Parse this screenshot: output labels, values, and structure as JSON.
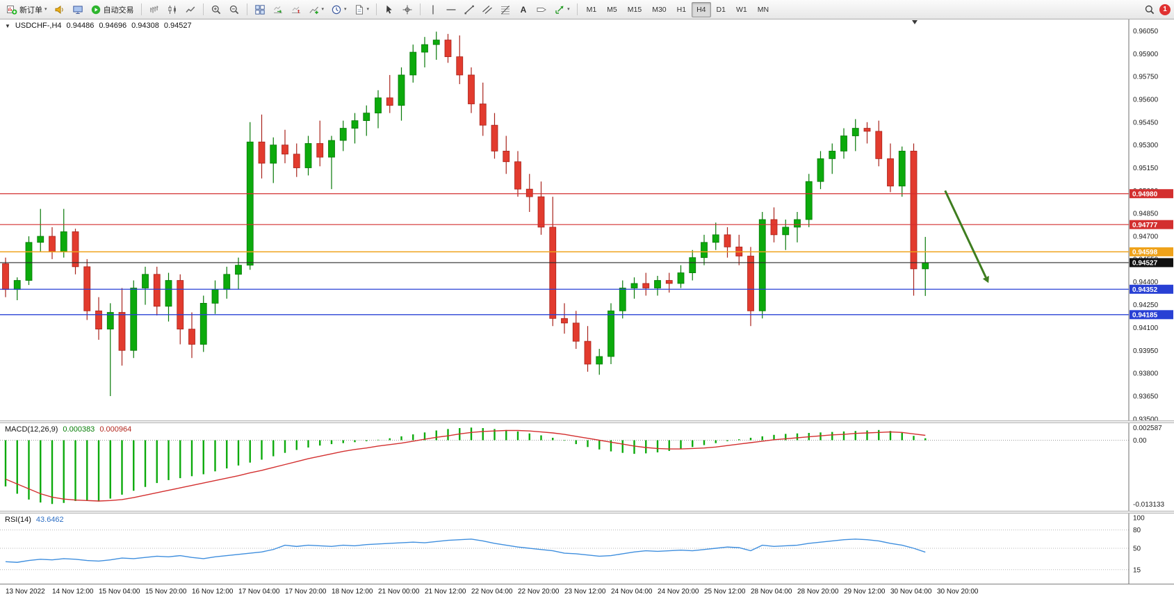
{
  "toolbar": {
    "new_order_label": "新订单",
    "auto_trading_label": "自动交易",
    "timeframes": [
      "M1",
      "M5",
      "M15",
      "M30",
      "H1",
      "H4",
      "D1",
      "W1",
      "MN"
    ],
    "active_timeframe": "H4",
    "notification_badge": "1",
    "icons": [
      "new-order-icon",
      "speaker-icon",
      "monitor-icon",
      "auto-trading-icon",
      "bar-chart-icon",
      "candlestick-chart-icon",
      "line-chart-icon",
      "zoom-in-icon",
      "zoom-out-icon",
      "tile-windows-icon",
      "auto-scroll-icon",
      "chart-shift-icon",
      "indicators-icon",
      "periods-icon",
      "templates-icon",
      "cursor-icon",
      "crosshair-icon",
      "vertical-line-icon",
      "horizontal-line-icon",
      "trendline-icon",
      "channel-icon",
      "fibonacci-icon",
      "text-icon",
      "label-icon",
      "arrows-icon",
      "search-icon"
    ]
  },
  "chart_header": {
    "symbol_period": "USDCHF-,H4",
    "open": "0.94486",
    "high": "0.94696",
    "low": "0.94308",
    "close": "0.94527"
  },
  "macd_panel": {
    "label": "MACD(12,26,9)",
    "value_main": "0.000383",
    "value_signal": "0.000964"
  },
  "rsi_panel": {
    "label": "RSI(14)",
    "value": "43.6462"
  },
  "time_axis": {
    "labels": [
      "13 Nov 2022",
      "14 Nov 12:00",
      "15 Nov 04:00",
      "15 Nov 20:00",
      "16 Nov 12:00",
      "17 Nov 04:00",
      "17 Nov 20:00",
      "18 Nov 12:00",
      "21 Nov 00:00",
      "21 Nov 12:00",
      "22 Nov 04:00",
      "22 Nov 20:00",
      "23 Nov 12:00",
      "24 Nov 04:00",
      "24 Nov 20:00",
      "25 Nov 12:00",
      "28 Nov 04:00",
      "28 Nov 20:00",
      "29 Nov 12:00",
      "30 Nov 04:00",
      "30 Nov 20:00"
    ]
  },
  "chart_data": [
    {
      "type": "candlestick",
      "title": "USDCHF- H4",
      "ylim": [
        0.9349,
        0.96125
      ],
      "y_ticks": [
        "0.93500",
        "0.93650",
        "0.93800",
        "0.93950",
        "0.94100",
        "0.94250",
        "0.94400",
        "0.94550",
        "0.94700",
        "0.94850",
        "0.95000",
        "0.95150",
        "0.95300",
        "0.95450",
        "0.95600",
        "0.95750",
        "0.95900",
        "0.96050"
      ],
      "colors": {
        "up": "#0caa0c",
        "down": "#e23b2e",
        "up_border": "#067806",
        "down_border": "#a8221a"
      },
      "candles": [
        [
          0.9452,
          0.9456,
          0.943,
          0.9435
        ],
        [
          0.9435,
          0.9443,
          0.9428,
          0.9441
        ],
        [
          0.9441,
          0.947,
          0.9438,
          0.9466
        ],
        [
          0.9466,
          0.9488,
          0.946,
          0.947
        ],
        [
          0.947,
          0.9476,
          0.9455,
          0.946
        ],
        [
          0.946,
          0.9488,
          0.9456,
          0.9473
        ],
        [
          0.9473,
          0.9475,
          0.9445,
          0.945
        ],
        [
          0.945,
          0.9455,
          0.9415,
          0.9421
        ],
        [
          0.9421,
          0.943,
          0.9402,
          0.9409
        ],
        [
          0.9409,
          0.9426,
          0.9365,
          0.942
        ],
        [
          0.942,
          0.9436,
          0.9385,
          0.9395
        ],
        [
          0.9395,
          0.9441,
          0.939,
          0.9436
        ],
        [
          0.9436,
          0.945,
          0.9425,
          0.9445
        ],
        [
          0.9445,
          0.945,
          0.9418,
          0.9424
        ],
        [
          0.9424,
          0.9446,
          0.9414,
          0.9441
        ],
        [
          0.9441,
          0.9445,
          0.9399,
          0.9409
        ],
        [
          0.9409,
          0.942,
          0.939,
          0.9399
        ],
        [
          0.9399,
          0.9431,
          0.9394,
          0.9426
        ],
        [
          0.9426,
          0.9441,
          0.9419,
          0.9435
        ],
        [
          0.9435,
          0.945,
          0.9429,
          0.9445
        ],
        [
          0.9445,
          0.9456,
          0.9435,
          0.9451
        ],
        [
          0.9451,
          0.9545,
          0.9448,
          0.9532
        ],
        [
          0.9532,
          0.955,
          0.9508,
          0.9518
        ],
        [
          0.9518,
          0.9535,
          0.9505,
          0.953
        ],
        [
          0.953,
          0.954,
          0.9518,
          0.9524
        ],
        [
          0.9524,
          0.9531,
          0.9509,
          0.9515
        ],
        [
          0.9515,
          0.9536,
          0.951,
          0.9531
        ],
        [
          0.9531,
          0.9546,
          0.9516,
          0.9522
        ],
        [
          0.9522,
          0.9536,
          0.9501,
          0.9533
        ],
        [
          0.9533,
          0.9546,
          0.9526,
          0.9541
        ],
        [
          0.9541,
          0.9551,
          0.9531,
          0.9546
        ],
        [
          0.9546,
          0.9556,
          0.9536,
          0.9551
        ],
        [
          0.9551,
          0.9566,
          0.9541,
          0.9561
        ],
        [
          0.9561,
          0.9576,
          0.9551,
          0.9556
        ],
        [
          0.9556,
          0.9581,
          0.9546,
          0.9576
        ],
        [
          0.9576,
          0.9596,
          0.9571,
          0.9591
        ],
        [
          0.9591,
          0.9601,
          0.9581,
          0.9596
        ],
        [
          0.9596,
          0.96045,
          0.9586,
          0.9599
        ],
        [
          0.9599,
          0.9603,
          0.9584,
          0.9588
        ],
        [
          0.9588,
          0.9602,
          0.957,
          0.9576
        ],
        [
          0.9576,
          0.9581,
          0.9551,
          0.9557
        ],
        [
          0.9557,
          0.9571,
          0.9536,
          0.9543
        ],
        [
          0.9543,
          0.9551,
          0.9521,
          0.9526
        ],
        [
          0.9526,
          0.9536,
          0.9511,
          0.9519
        ],
        [
          0.9519,
          0.9526,
          0.9496,
          0.9501
        ],
        [
          0.9501,
          0.9511,
          0.9486,
          0.9496
        ],
        [
          0.9496,
          0.9506,
          0.9471,
          0.9476
        ],
        [
          0.9476,
          0.9496,
          0.9411,
          0.9416
        ],
        [
          0.9416,
          0.9426,
          0.9406,
          0.9413
        ],
        [
          0.9413,
          0.9421,
          0.9396,
          0.9401
        ],
        [
          0.9401,
          0.9411,
          0.9381,
          0.9386
        ],
        [
          0.9386,
          0.9396,
          0.9379,
          0.9391
        ],
        [
          0.9391,
          0.9426,
          0.9386,
          0.9421
        ],
        [
          0.9421,
          0.9441,
          0.9416,
          0.9436
        ],
        [
          0.9436,
          0.9443,
          0.9429,
          0.9439
        ],
        [
          0.9439,
          0.9446,
          0.9431,
          0.9436
        ],
        [
          0.9436,
          0.9444,
          0.9431,
          0.9441
        ],
        [
          0.9441,
          0.9446,
          0.9433,
          0.9439
        ],
        [
          0.9439,
          0.9451,
          0.9436,
          0.9446
        ],
        [
          0.9446,
          0.9461,
          0.9441,
          0.9456
        ],
        [
          0.9456,
          0.9471,
          0.9451,
          0.9466
        ],
        [
          0.9466,
          0.9479,
          0.9461,
          0.9471
        ],
        [
          0.9471,
          0.9476,
          0.9456,
          0.9463
        ],
        [
          0.9463,
          0.9471,
          0.9451,
          0.9457
        ],
        [
          0.9457,
          0.9463,
          0.9411,
          0.9421
        ],
        [
          0.9421,
          0.9486,
          0.9416,
          0.9481
        ],
        [
          0.9481,
          0.9489,
          0.9466,
          0.9471
        ],
        [
          0.9471,
          0.9481,
          0.9461,
          0.9476
        ],
        [
          0.9476,
          0.9486,
          0.9466,
          0.9481
        ],
        [
          0.9481,
          0.9511,
          0.9476,
          0.9506
        ],
        [
          0.9506,
          0.9526,
          0.9501,
          0.9521
        ],
        [
          0.9521,
          0.9531,
          0.9511,
          0.9526
        ],
        [
          0.9526,
          0.9541,
          0.9521,
          0.9536
        ],
        [
          0.9536,
          0.9547,
          0.9526,
          0.9541
        ],
        [
          0.9541,
          0.9545,
          0.9531,
          0.9539
        ],
        [
          0.9539,
          0.9546,
          0.9516,
          0.9521
        ],
        [
          0.9521,
          0.9531,
          0.9499,
          0.9503
        ],
        [
          0.9503,
          0.9529,
          0.9496,
          0.9526
        ],
        [
          0.9526,
          0.9531,
          0.9431,
          0.94486
        ],
        [
          0.94486,
          0.94696,
          0.94308,
          0.94527
        ]
      ],
      "hlines": [
        {
          "price": 0.9498,
          "label": "0.94980",
          "color": "#d32f2f",
          "width": 1.2
        },
        {
          "price": 0.94777,
          "label": "0.94777",
          "color": "#d32f2f",
          "width": 1.2
        },
        {
          "price": 0.94598,
          "label": "0.94598",
          "color": "#efa21a",
          "width": 1.6
        },
        {
          "price": 0.94527,
          "label": "0.94527",
          "color": "#2b2b2b",
          "width": 1.1,
          "tag_color": "#111111",
          "role": "current-price"
        },
        {
          "price": 0.94352,
          "label": "0.94352",
          "color": "#2840d4",
          "width": 1.3
        },
        {
          "price": 0.94185,
          "label": "0.94185",
          "color": "#2840d4",
          "width": 1.3
        }
      ],
      "arrow": {
        "bar_start": 80.7,
        "price_start": 0.95,
        "bar_end": 84.2,
        "price_end": 0.9443,
        "color": "#3e7d1f"
      }
    },
    {
      "type": "bar+line",
      "name": "MACD",
      "params": "12,26,9",
      "ylim": [
        -0.0145,
        0.0035
      ],
      "colors": {
        "histogram": "#0caa0c",
        "signal": "#d32f2f"
      },
      "histogram": [
        -0.0095,
        -0.011,
        -0.0122,
        -0.0128,
        -0.0131,
        -0.0129,
        -0.0125,
        -0.0124,
        -0.0126,
        -0.012,
        -0.0112,
        -0.0104,
        -0.0096,
        -0.0088,
        -0.0082,
        -0.0078,
        -0.0074,
        -0.007,
        -0.0064,
        -0.0058,
        -0.0052,
        -0.0046,
        -0.004,
        -0.0033,
        -0.0026,
        -0.002,
        -0.0015,
        -0.0011,
        -0.0008,
        -0.0006,
        -0.0004,
        -0.0002,
        0.0001,
        0.0004,
        0.0008,
        0.0012,
        0.0016,
        0.002,
        0.0023,
        0.0025,
        0.0026,
        0.0025,
        0.0023,
        0.0021,
        0.0018,
        0.0014,
        0.001,
        0.0005,
        -0.0001,
        -0.0008,
        -0.0014,
        -0.0019,
        -0.0023,
        -0.0026,
        -0.0028,
        -0.0027,
        -0.0025,
        -0.0022,
        -0.0018,
        -0.0014,
        -0.001,
        -0.0006,
        -0.0002,
        0.0002,
        0.0005,
        0.0008,
        0.0011,
        0.0013,
        0.0014,
        0.0015,
        0.0016,
        0.0017,
        0.0018,
        0.0019,
        0.002,
        0.0021,
        0.0019,
        0.0015,
        0.0009,
        0.0004
      ],
      "signal": [
        -0.008,
        -0.009,
        -0.01,
        -0.011,
        -0.0117,
        -0.0121,
        -0.0123,
        -0.0124,
        -0.0125,
        -0.0124,
        -0.0122,
        -0.0118,
        -0.0113,
        -0.0108,
        -0.0103,
        -0.0098,
        -0.0093,
        -0.0088,
        -0.0083,
        -0.0078,
        -0.0073,
        -0.0067,
        -0.0062,
        -0.0056,
        -0.005,
        -0.0044,
        -0.0038,
        -0.0033,
        -0.0028,
        -0.0023,
        -0.0019,
        -0.0016,
        -0.0012,
        -0.0009,
        -0.0006,
        -0.0002,
        0.0002,
        0.0006,
        0.0009,
        0.0013,
        0.0016,
        0.0018,
        0.0019,
        0.002,
        0.002,
        0.0019,
        0.0017,
        0.0015,
        0.0012,
        0.0008,
        0.0004,
        0.0,
        -0.0004,
        -0.0008,
        -0.0012,
        -0.0015,
        -0.0017,
        -0.0018,
        -0.0018,
        -0.0017,
        -0.0016,
        -0.0014,
        -0.0011,
        -0.0008,
        -0.0005,
        -0.0002,
        0.0001,
        0.0003,
        0.0005,
        0.0007,
        0.0009,
        0.0011,
        0.0012,
        0.0014,
        0.0015,
        0.0016,
        0.0017,
        0.0016,
        0.0013,
        0.001
      ],
      "axis_labels": [
        {
          "value": 0.002587,
          "text": "0.002587"
        },
        {
          "value": 0,
          "text": "0.00"
        },
        {
          "value": -0.013133,
          "text": "-0.013133"
        }
      ]
    },
    {
      "type": "line",
      "name": "RSI",
      "params": "14",
      "ylim": [
        0,
        100
      ],
      "color": "#3e8ede",
      "values": [
        28,
        27,
        30,
        32,
        31,
        33,
        32,
        30,
        29,
        31,
        34,
        33,
        35,
        37,
        36,
        38,
        35,
        33,
        36,
        38,
        40,
        42,
        44,
        48,
        55,
        53,
        55,
        54,
        53,
        55,
        54,
        56,
        57,
        58,
        59,
        60,
        59,
        61,
        63,
        64,
        65,
        62,
        58,
        55,
        52,
        50,
        48,
        46,
        42,
        41,
        39,
        37,
        38,
        41,
        44,
        46,
        45,
        46,
        47,
        46,
        48,
        50,
        52,
        51,
        46,
        55,
        53,
        54,
        55,
        58,
        60,
        62,
        64,
        65,
        64,
        62,
        58,
        55,
        50,
        43.6462
      ],
      "levels": [
        {
          "value": 80
        },
        {
          "value": 50
        },
        {
          "value": 15
        }
      ],
      "axis_labels": [
        {
          "value": 100,
          "text": "100"
        },
        {
          "value": 80,
          "text": "80"
        },
        {
          "value": 50,
          "text": "50"
        },
        {
          "value": 15,
          "text": "15"
        }
      ]
    }
  ]
}
